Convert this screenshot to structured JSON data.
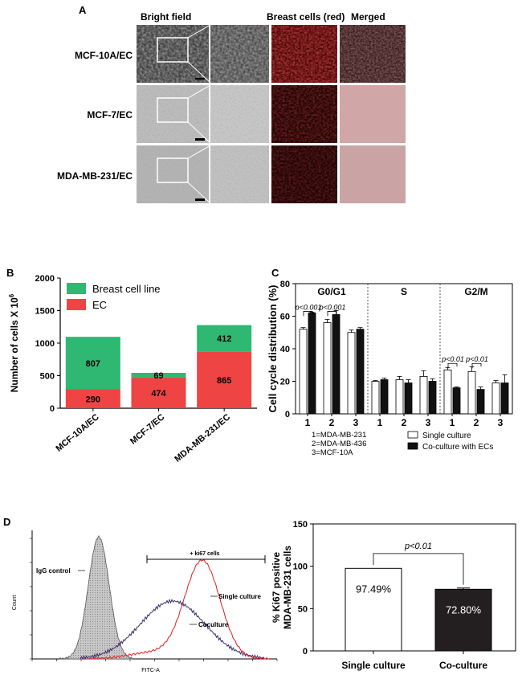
{
  "panel_a": {
    "label": "A",
    "columns": [
      "Bright field",
      "Breast cells (red)",
      "Merged"
    ],
    "rows": [
      "MCF-10A/EC",
      "MCF-7/EC",
      "MDA-MB-231/EC"
    ]
  },
  "chart_data": [
    {
      "id": "B",
      "panel_label": "B",
      "type": "bar",
      "stacked": true,
      "categories": [
        "MCF-10A/EC",
        "MCF-7/EC",
        "MDA-MB-231/EC"
      ],
      "series": [
        {
          "name": "EC",
          "values": [
            290,
            474,
            865
          ],
          "color": "#ee4444"
        },
        {
          "name": "Breast cell line",
          "values": [
            807,
            69,
            412
          ],
          "color": "#2eb872"
        }
      ],
      "ylabel": "Number of cells X 10",
      "ylabel_sup": "6",
      "ylim": [
        0,
        2000
      ],
      "yticks": [
        0,
        500,
        1000,
        1500,
        2000
      ],
      "legend": "top-left"
    },
    {
      "id": "C",
      "panel_label": "C",
      "type": "bar",
      "groups": [
        "G0/G1",
        "S",
        "G2/M"
      ],
      "categories": [
        "1",
        "2",
        "3"
      ],
      "series": [
        {
          "name": "Single culture",
          "color": "#ffffff",
          "values": [
            [
              52,
              56,
              50
            ],
            [
              20,
              21,
              23
            ],
            [
              27,
              26,
              19
            ]
          ],
          "errors": [
            [
              1,
              2,
              1.5
            ],
            [
              0.5,
              2,
              3.5
            ],
            [
              1.5,
              3,
              1.5
            ]
          ]
        },
        {
          "name": "Co-culture with ECs",
          "color": "#111111",
          "values": [
            [
              62,
              61,
              52
            ],
            [
              21,
              19,
              20
            ],
            [
              16,
              15,
              19
            ]
          ],
          "errors": [
            [
              0.5,
              2.5,
              1
            ],
            [
              1,
              2,
              1.5
            ],
            [
              0.5,
              1.5,
              5
            ]
          ]
        }
      ],
      "ylabel": "Cell cycle distribution (%)",
      "ylim": [
        0,
        80
      ],
      "yticks": [
        0,
        20,
        40,
        60,
        80
      ],
      "annotations": [
        "p<0.001",
        "p<0.001",
        "p<0.01",
        "p<0.01"
      ],
      "key": [
        "1=MDA-MB-231",
        "2=MDA-MB-436",
        "3=MCF-10A"
      ]
    },
    {
      "id": "D_flow",
      "panel_label": "D",
      "type": "line",
      "xlabel": "FITC-A",
      "ylabel": "Count",
      "annotations": [
        "IgG control",
        "+ ki67 cells",
        "Single culture",
        "Coculture"
      ]
    },
    {
      "id": "D_bar",
      "type": "bar",
      "categories": [
        "Single culture",
        "Co-culture"
      ],
      "values": [
        97.49,
        72.8
      ],
      "errors": [
        0,
        1.5
      ],
      "data_labels": [
        "97.49%",
        "72.80%"
      ],
      "colors": [
        "#ffffff",
        "#231f20"
      ],
      "ylabel_line1": "% Ki67 positive",
      "ylabel_line2": "MDA-MB-231 cells",
      "ylim": [
        0,
        150
      ],
      "yticks": [
        0,
        50,
        100,
        150
      ],
      "annotation": "p<0.01"
    }
  ]
}
